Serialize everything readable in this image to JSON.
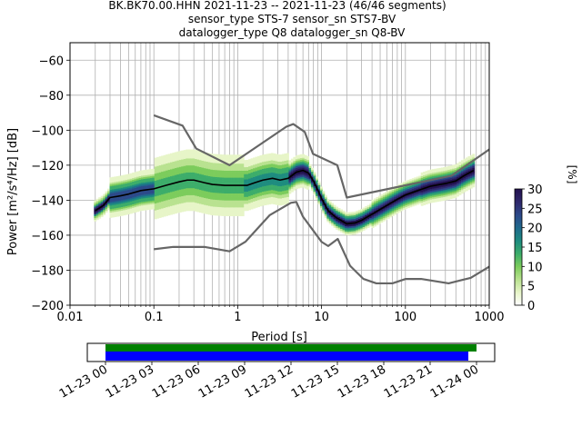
{
  "chart_data": {
    "type": "heatmap",
    "subtype": "probabilistic-power-spectral-density",
    "title": {
      "line1": "BK.BK70.00.HHN   2021-11-23 -- 2021-11-23  (46/46 segments)",
      "line2": "sensor_type STS-7 sensor_sn STS7-BV",
      "line3": "datalogger_type Q8 datalogger_sn Q8-BV"
    },
    "xlabel": "Period [s]",
    "ylabel": "Power [m²/s⁴/Hz] [dB]",
    "xscale": "log",
    "xlim": [
      0.01,
      1000
    ],
    "ylim": [
      -200,
      -50
    ],
    "x_ticks": [
      {
        "value": 0.01,
        "label": "0.01"
      },
      {
        "value": 0.1,
        "label": "0.1"
      },
      {
        "value": 1,
        "label": "1"
      },
      {
        "value": 10,
        "label": "10"
      },
      {
        "value": 100,
        "label": "100"
      },
      {
        "value": 1000,
        "label": "1000"
      }
    ],
    "y_ticks": [
      {
        "value": -60,
        "label": "−60"
      },
      {
        "value": -80,
        "label": "−80"
      },
      {
        "value": -100,
        "label": "−100"
      },
      {
        "value": -120,
        "label": "−120"
      },
      {
        "value": -140,
        "label": "−140"
      },
      {
        "value": -160,
        "label": "−160"
      },
      {
        "value": -180,
        "label": "−180"
      },
      {
        "value": -200,
        "label": "−200"
      }
    ],
    "grid": true,
    "colors": {
      "noise_model": "#666666",
      "mean_line": "#000000",
      "coverage_green": "#008000",
      "coverage_blue": "#0000ff"
    },
    "colorbar": {
      "label": "[%]",
      "range": [
        0,
        30
      ],
      "ticks": [
        {
          "value": 0,
          "label": "0"
        },
        {
          "value": 5,
          "label": "5"
        },
        {
          "value": 10,
          "label": "10"
        },
        {
          "value": 15,
          "label": "15"
        },
        {
          "value": 20,
          "label": "20"
        },
        {
          "value": 25,
          "label": "25"
        },
        {
          "value": 30,
          "label": "30"
        }
      ],
      "colormap": [
        "#ffffff",
        "#e7f5c8",
        "#b9e290",
        "#7ccc5c",
        "#3dad6a",
        "#1e8c7f",
        "#1f6b8c",
        "#2c4a8a",
        "#2f2a6e",
        "#23114f"
      ]
    },
    "series": [
      {
        "name": "",
        "role": "new-high-noise-model",
        "points": [
          [
            0.1,
            -91.5
          ],
          [
            0.22,
            -97.4
          ],
          [
            0.32,
            -110.5
          ],
          [
            0.8,
            -120.0
          ],
          [
            3.8,
            -98.0
          ],
          [
            4.6,
            -96.5
          ],
          [
            6.3,
            -101.0
          ],
          [
            7.9,
            -113.5
          ],
          [
            15.4,
            -120.0
          ],
          [
            20,
            -138.5
          ],
          [
            354.8,
            -126.0
          ],
          [
            1000,
            -111.0
          ]
        ]
      },
      {
        "name": "",
        "role": "new-low-noise-model",
        "points": [
          [
            0.1,
            -168.0
          ],
          [
            0.17,
            -166.7
          ],
          [
            0.4,
            -166.7
          ],
          [
            0.8,
            -169.2
          ],
          [
            1.24,
            -163.7
          ],
          [
            2.4,
            -148.6
          ],
          [
            4.3,
            -141.5
          ],
          [
            5.0,
            -141.0
          ],
          [
            6.0,
            -149.4
          ],
          [
            10.0,
            -163.8
          ],
          [
            12.0,
            -166.2
          ],
          [
            15.6,
            -162.1
          ],
          [
            21.9,
            -177.5
          ],
          [
            31.6,
            -185.0
          ],
          [
            45.0,
            -187.5
          ],
          [
            70.0,
            -187.5
          ],
          [
            101.0,
            -185.0
          ],
          [
            154.0,
            -185.0
          ],
          [
            328.0,
            -187.5
          ],
          [
            600.0,
            -184.4
          ],
          [
            1000.0,
            -178.0
          ]
        ]
      },
      {
        "name": "",
        "role": "mean",
        "points": [
          [
            0.02,
            -146
          ],
          [
            0.025,
            -143
          ],
          [
            0.03,
            -138.5
          ],
          [
            0.04,
            -137.5
          ],
          [
            0.05,
            -136.5
          ],
          [
            0.07,
            -134.5
          ],
          [
            0.1,
            -133.5
          ],
          [
            0.14,
            -131.5
          ],
          [
            0.2,
            -129.5
          ],
          [
            0.25,
            -128.5
          ],
          [
            0.3,
            -128.5
          ],
          [
            0.4,
            -130
          ],
          [
            0.5,
            -131
          ],
          [
            0.7,
            -131.5
          ],
          [
            1.0,
            -131.5
          ],
          [
            1.3,
            -131.5
          ],
          [
            1.6,
            -130
          ],
          [
            2.0,
            -128.5
          ],
          [
            2.6,
            -127.5
          ],
          [
            3.2,
            -128.5
          ],
          [
            4.0,
            -127.5
          ],
          [
            5.0,
            -124
          ],
          [
            6.0,
            -123
          ],
          [
            7.0,
            -124.5
          ],
          [
            8.0,
            -129
          ],
          [
            9.0,
            -134
          ],
          [
            10.0,
            -139
          ],
          [
            12.0,
            -146
          ],
          [
            15.0,
            -150
          ],
          [
            20.0,
            -153.5
          ],
          [
            25.0,
            -153
          ],
          [
            30.0,
            -151.5
          ],
          [
            40.0,
            -148
          ],
          [
            60.0,
            -143
          ],
          [
            80.0,
            -139.5
          ],
          [
            100.0,
            -137
          ],
          [
            150.0,
            -134
          ],
          [
            200.0,
            -132
          ],
          [
            300.0,
            -130.5
          ],
          [
            400.0,
            -129
          ],
          [
            500.0,
            -126
          ],
          [
            650.0,
            -123
          ]
        ]
      }
    ],
    "coverage": {
      "xlabel": "",
      "time_ticks": [
        "11-23 00",
        "11-23 03",
        "11-23 06",
        "11-23 09",
        "11-23 12",
        "11-23 15",
        "11-23 18",
        "11-23 21",
        "11-24 00"
      ]
    }
  }
}
